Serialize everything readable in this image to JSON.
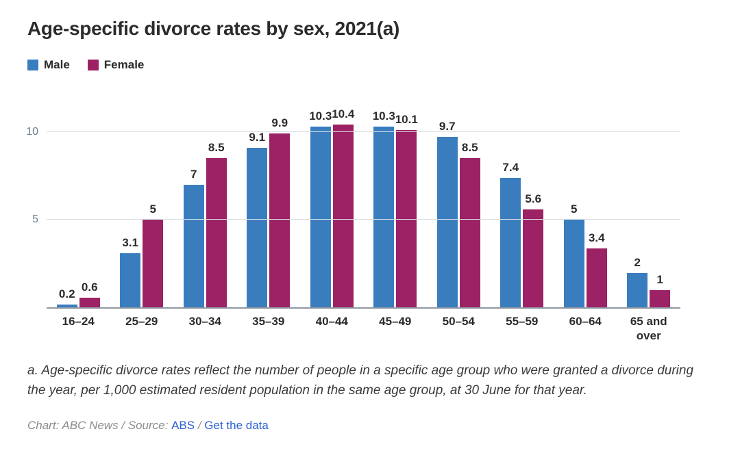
{
  "title": "Age-specific divorce rates by sex, 2021(a)",
  "legend": [
    {
      "label": "Male",
      "color": "#3a7dbf"
    },
    {
      "label": "Female",
      "color": "#9c2265"
    }
  ],
  "chart_data": {
    "type": "bar",
    "title": "Age-specific divorce rates by sex, 2021(a)",
    "categories": [
      "16–24",
      "25–29",
      "30–34",
      "35–39",
      "40–44",
      "45–49",
      "50–54",
      "55–59",
      "60–64",
      "65 and over"
    ],
    "series": [
      {
        "name": "Male",
        "color": "#3a7dbf",
        "values": [
          0.2,
          3.1,
          7,
          9.1,
          10.3,
          10.3,
          9.7,
          7.4,
          5,
          2
        ]
      },
      {
        "name": "Female",
        "color": "#9c2265",
        "values": [
          0.6,
          5,
          8.5,
          9.9,
          10.4,
          10.1,
          8.5,
          5.6,
          3.4,
          1
        ]
      }
    ],
    "xlabel": "",
    "ylabel": "",
    "yticks": [
      5,
      10
    ],
    "ylim": [
      0,
      11.7
    ],
    "grid": true,
    "legend_position": "top-left",
    "colors": {
      "gridline": "#d9dde1",
      "axis_line": "#8f98a1",
      "tick_label": "#6e7c8e"
    }
  },
  "footnote": "a. Age-specific divorce rates reflect the number of people in a specific age group who were granted a divorce during the year, per 1,000 estimated resident population in the same age group, at 30 June for that year.",
  "credit": {
    "prefix": "Chart: ABC News / Source: ",
    "source_link": "ABS",
    "separator": " / ",
    "data_link": "Get the data"
  }
}
